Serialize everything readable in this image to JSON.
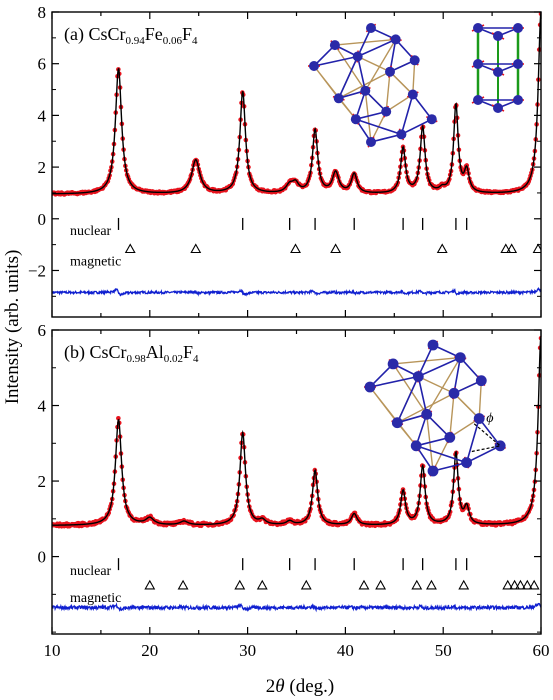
{
  "colors": {
    "observed": "#e8141e",
    "calculated": "#000000",
    "difference": "#1020d0",
    "atom": "#2a2aa8",
    "exchange_bond": "#b8955a",
    "bond": "#2222aa",
    "spin": "#e8141e",
    "vertical_bond": "#1a9a1a"
  },
  "icons": {
    "top_triangle_lattice": "kagome-lattice-inset",
    "top_chain": "stacked-triangle-chain-inset",
    "bottom_triangle_lattice": "kagome-lattice-with-angle-inset"
  },
  "shared_axis": {
    "xlabel": "2θ (deg.)",
    "ylabel": "Intensity (arb. units)",
    "xlim": [
      10,
      60
    ],
    "xticks": [
      10,
      20,
      30,
      40,
      50,
      60
    ]
  },
  "chart_data": [
    {
      "type": "line",
      "panel": "a",
      "title": "(a) CsCr0.94Fe0.06F4",
      "title_parts": {
        "prefix": "(a) CsCr",
        "sub1": "0.94",
        "mid": "Fe",
        "sub2": "0.06",
        "suffix": "F",
        "sub3": "4"
      },
      "xlim": [
        10,
        60
      ],
      "ylim": [
        -3.8,
        8
      ],
      "yticks": [
        -2,
        0,
        2,
        4,
        6,
        8
      ],
      "baseline": 0.95,
      "peaks": [
        {
          "x": 16.8,
          "height": 4.85,
          "width": 0.38
        },
        {
          "x": 24.7,
          "height": 1.3,
          "width": 0.5
        },
        {
          "x": 29.5,
          "height": 3.95,
          "width": 0.34
        },
        {
          "x": 34.3,
          "height": 0.3,
          "width": 0.45
        },
        {
          "x": 34.9,
          "height": 0.35,
          "width": 0.4
        },
        {
          "x": 36.9,
          "height": 2.45,
          "width": 0.32
        },
        {
          "x": 39.0,
          "height": 0.8,
          "width": 0.4
        },
        {
          "x": 40.9,
          "height": 0.75,
          "width": 0.35
        },
        {
          "x": 45.9,
          "height": 1.75,
          "width": 0.3
        },
        {
          "x": 47.9,
          "height": 2.55,
          "width": 0.3
        },
        {
          "x": 49.9,
          "height": 0.15,
          "width": 0.35
        },
        {
          "x": 51.3,
          "height": 3.4,
          "width": 0.28
        },
        {
          "x": 52.4,
          "height": 0.85,
          "width": 0.3
        },
        {
          "x": 60.0,
          "height": 7.0,
          "width": 0.35
        }
      ],
      "difference_offset": -2.85,
      "nuclear_ticks": [
        16.8,
        29.5,
        34.3,
        36.9,
        40.9,
        45.9,
        47.9,
        51.3,
        52.4
      ],
      "magnetic_ticks": [
        18.0,
        24.7,
        34.9,
        39.0,
        49.9,
        56.4,
        57.0,
        59.7
      ],
      "nuclear_y": -0.2,
      "magnetic_y": -1.15,
      "labels": {
        "nuclear": "nuclear",
        "magnetic": "magnetic"
      }
    },
    {
      "type": "line",
      "panel": "b",
      "title": "(b) CsCr0.98Al0.02F4",
      "title_parts": {
        "prefix": "(b) CsCr",
        "sub1": "0.98",
        "mid": "Al",
        "sub2": "0.02",
        "suffix": "F",
        "sub3": "4"
      },
      "xlim": [
        10,
        60
      ],
      "ylim": [
        -2.05,
        6
      ],
      "yticks": [
        0,
        2,
        4,
        6
      ],
      "baseline": 0.82,
      "peaks": [
        {
          "x": 16.8,
          "height": 2.8,
          "width": 0.38
        },
        {
          "x": 20.0,
          "height": 0.18,
          "width": 0.5
        },
        {
          "x": 23.5,
          "height": 0.1,
          "width": 0.5
        },
        {
          "x": 29.5,
          "height": 2.45,
          "width": 0.34
        },
        {
          "x": 31.5,
          "height": 0.12,
          "width": 0.4
        },
        {
          "x": 34.3,
          "height": 0.1,
          "width": 0.4
        },
        {
          "x": 36.9,
          "height": 1.45,
          "width": 0.32
        },
        {
          "x": 40.9,
          "height": 0.3,
          "width": 0.35
        },
        {
          "x": 45.9,
          "height": 0.9,
          "width": 0.3
        },
        {
          "x": 47.9,
          "height": 1.55,
          "width": 0.3
        },
        {
          "x": 51.3,
          "height": 1.9,
          "width": 0.28
        },
        {
          "x": 52.4,
          "height": 0.45,
          "width": 0.3
        },
        {
          "x": 60.0,
          "height": 5.0,
          "width": 0.35
        }
      ],
      "difference_offset": -1.35,
      "nuclear_ticks": [
        16.8,
        29.5,
        34.3,
        36.9,
        40.9,
        45.9,
        47.9,
        51.3,
        52.4
      ],
      "magnetic_ticks": [
        20.0,
        23.4,
        29.2,
        31.5,
        36.0,
        41.9,
        43.6,
        47.3,
        48.8,
        52.1,
        56.6,
        57.3,
        57.9,
        58.6,
        59.3
      ],
      "nuclear_y": -0.2,
      "magnetic_y": -0.75,
      "labels": {
        "nuclear": "nuclear",
        "magnetic": "magnetic"
      },
      "inset_annotation": "ϕ"
    }
  ]
}
